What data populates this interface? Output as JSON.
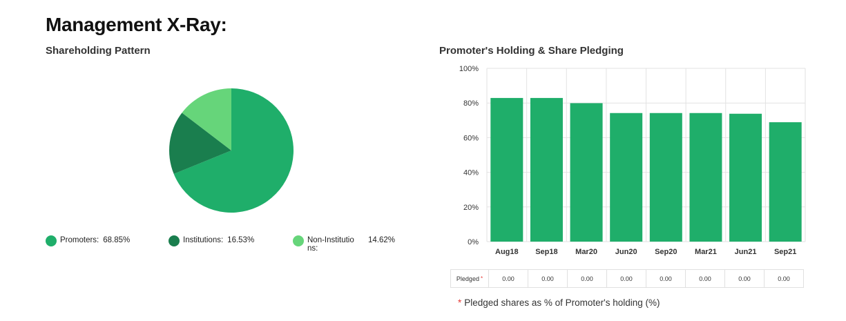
{
  "page": {
    "title": "Management X-Ray:"
  },
  "pie": {
    "subtitle": "Shareholding Pattern"
  },
  "bar": {
    "subtitle": "Promoter's Holding & Share Pledging"
  },
  "pledge_table": {
    "label": "Pledged",
    "marker": "*",
    "values": [
      "0.00",
      "0.00",
      "0.00",
      "0.00",
      "0.00",
      "0.00",
      "0.00",
      "0.00"
    ]
  },
  "footnote": {
    "marker": "*",
    "text": "Pledged shares as % of Promoter's holding (%)"
  },
  "chart_data": [
    {
      "type": "pie",
      "title": "Shareholding Pattern",
      "legend_placement": "bottom",
      "slices": [
        {
          "label": "Promoters:",
          "value": 68.85,
          "value_label": "68.85%",
          "color": "#1fae6a"
        },
        {
          "label": "Institutions:",
          "value": 16.53,
          "value_label": "16.53%",
          "color": "#1a7e4e"
        },
        {
          "label": "Non-Institutio ns:",
          "value": 14.62,
          "value_label": "14.62%",
          "color": "#66d57a"
        }
      ]
    },
    {
      "type": "bar",
      "title": "Promoter's Holding & Share Pledging",
      "categories": [
        "Aug18",
        "Sep18",
        "Mar20",
        "Jun20",
        "Sep20",
        "Mar21",
        "Jun21",
        "Sep21"
      ],
      "values": [
        82.9,
        82.9,
        79.9,
        74.2,
        74.2,
        74.2,
        73.8,
        68.9
      ],
      "ylim": [
        0,
        100
      ],
      "yticks": [
        "0%",
        "20%",
        "40%",
        "60%",
        "80%",
        "100%"
      ],
      "ytick_values": [
        0,
        20,
        40,
        60,
        80,
        100
      ],
      "grid": true,
      "bar_color": "#1fae6a"
    }
  ]
}
